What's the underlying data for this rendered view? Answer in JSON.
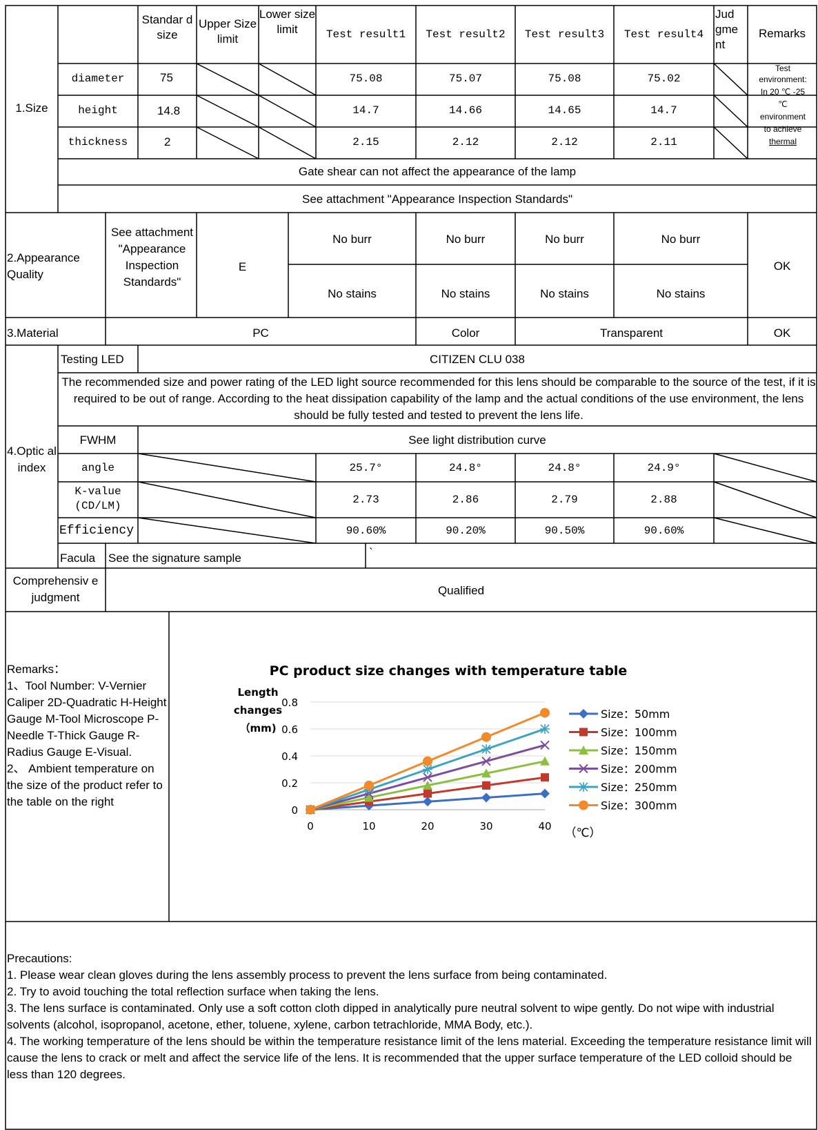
{
  "header": {
    "standard_size": "Standar d size",
    "upper_limit": "Upper Size limit",
    "lower_limit": "Lower size limit",
    "test1": "Test result1",
    "test2": "Test result2",
    "test3": "Test result3",
    "test4": "Test result4",
    "judgment": "Jud gme nt",
    "remarks": "Remarks"
  },
  "size": {
    "section": "1.Size",
    "rows": [
      {
        "name": "diameter",
        "standard": "75",
        "r1": "75.08",
        "r2": "75.07",
        "r3": "75.08",
        "r4": "75.02"
      },
      {
        "name": "height",
        "standard": "14.8",
        "r1": "14.7",
        "r2": "14.66",
        "r3": "14.65",
        "r4": "14.7"
      },
      {
        "name": "thickness",
        "standard": "2",
        "r1": "2.15",
        "r2": "2.12",
        "r3": "2.12",
        "r4": "2.11"
      }
    ],
    "remark_lines": [
      "Test",
      "environment:",
      "In 20 ℃ -25",
      "℃",
      "environment",
      "to achieve",
      "thermal"
    ],
    "gate_note": "Gate shear can not affect the appearance of the lamp",
    "appearance_note": "See attachment \"Appearance Inspection Standards\""
  },
  "appearance": {
    "section": "2.Appearance Quality",
    "standard": "See attachment \"Appearance Inspection Standards\"",
    "method": "E",
    "burr": [
      "No burr",
      "No burr",
      "No burr",
      "No burr"
    ],
    "stains": [
      "No stains",
      "No stains",
      "No stains",
      "No stains"
    ],
    "result": "OK"
  },
  "material": {
    "section": "3.Material",
    "value": "PC",
    "color_label": "Color",
    "color_value": "Transparent",
    "result": "OK"
  },
  "optic": {
    "section": "4.Optic al index",
    "testing_led_label": "Testing LED",
    "testing_led_value": "CITIZEN CLU 038",
    "recommendation": "The recommended size and power rating of the LED light source recommended for this lens should be comparable to the source of the test, if it is required to be out of range. According to the heat dissipation capability of the lamp and the actual conditions of the use environment, the lens should be fully tested and tested to prevent the lens life.",
    "fwhm_label": "FWHM",
    "fwhm_value": "See light distribution curve",
    "angle_label": "angle",
    "angle": [
      "25.7°",
      "24.8°",
      "24.8°",
      "24.9°"
    ],
    "kvalue_label": "K-value (CD/LM)",
    "kvalue": [
      "2.73",
      "2.86",
      "2.79",
      "2.88"
    ],
    "efficiency_label": "Efficiency",
    "efficiency": [
      "90.60%",
      "90.20%",
      "90.50%",
      "90.60%"
    ],
    "facula_label": "Facula",
    "facula_value": "See the signature sample",
    "facula_mark": "`"
  },
  "comprehensive": {
    "label": "Comprehensiv e judgment",
    "value": "Qualified"
  },
  "remarks_block": {
    "title": "Remarks：",
    "item1": "1、Tool Number: V-Vernier Caliper 2D-Quadratic H-Height Gauge M-Tool Microscope P-Needle T-Thick Gauge R-Radius Gauge E-Visual.",
    "item2": "2、 Ambient temperature on the size of the product refer to the table on the right"
  },
  "chart_data": {
    "type": "line",
    "title": "PC product size changes with temperature  table",
    "ylabel_lines": [
      "Length",
      "changes",
      "（mm)"
    ],
    "xlabel": "（℃）",
    "x": [
      0,
      10,
      20,
      30,
      40
    ],
    "x_ticks": [
      "0",
      "10",
      "20",
      "30",
      "40"
    ],
    "y_ticks": [
      "0",
      "0.2",
      "0.4",
      "0.6",
      "0.8"
    ],
    "ylim": [
      0,
      0.8
    ],
    "xlim": [
      0,
      40
    ],
    "grid": "horizontal",
    "legend_position": "right",
    "series": [
      {
        "name": "Size：50mm",
        "values": [
          0,
          0.03,
          0.06,
          0.09,
          0.12
        ],
        "color": "#3a6fc4",
        "marker": "diamond"
      },
      {
        "name": "Size：100mm",
        "values": [
          0,
          0.06,
          0.12,
          0.18,
          0.24
        ],
        "color": "#c0392b",
        "marker": "square"
      },
      {
        "name": "Size：150mm",
        "values": [
          0,
          0.09,
          0.18,
          0.27,
          0.36
        ],
        "color": "#8cbf3f",
        "marker": "triangle"
      },
      {
        "name": "Size：200mm",
        "values": [
          0,
          0.12,
          0.24,
          0.36,
          0.48
        ],
        "color": "#7d4c9e",
        "marker": "x"
      },
      {
        "name": "Size：250mm",
        "values": [
          0,
          0.15,
          0.3,
          0.45,
          0.6
        ],
        "color": "#3aa3c2",
        "marker": "star"
      },
      {
        "name": "Size：300mm",
        "values": [
          0,
          0.18,
          0.36,
          0.54,
          0.72
        ],
        "color": "#f08a2a",
        "marker": "circle"
      }
    ]
  },
  "precautions": {
    "title": "Precautions:",
    "items": [
      "1. Please wear clean gloves during the lens assembly process to prevent the lens surface from being contaminated.",
      "2. Try to avoid touching the total reflection surface when taking the lens.",
      "3. The lens surface is contaminated. Only use a soft cotton cloth dipped in analytically pure neutral solvent to wipe gently. Do not wipe with industrial solvents (alcohol, isopropanol, acetone, ether, toluene, xylene, carbon tetrachloride, MMA Body, etc.).",
      "4. The working temperature of the lens should be within the temperature resistance limit of the lens material. Exceeding the temperature resistance limit will cause the lens to crack or melt and affect the service life of the lens. It is recommended that the upper surface temperature of the LED colloid should be less than 120 degrees."
    ]
  }
}
